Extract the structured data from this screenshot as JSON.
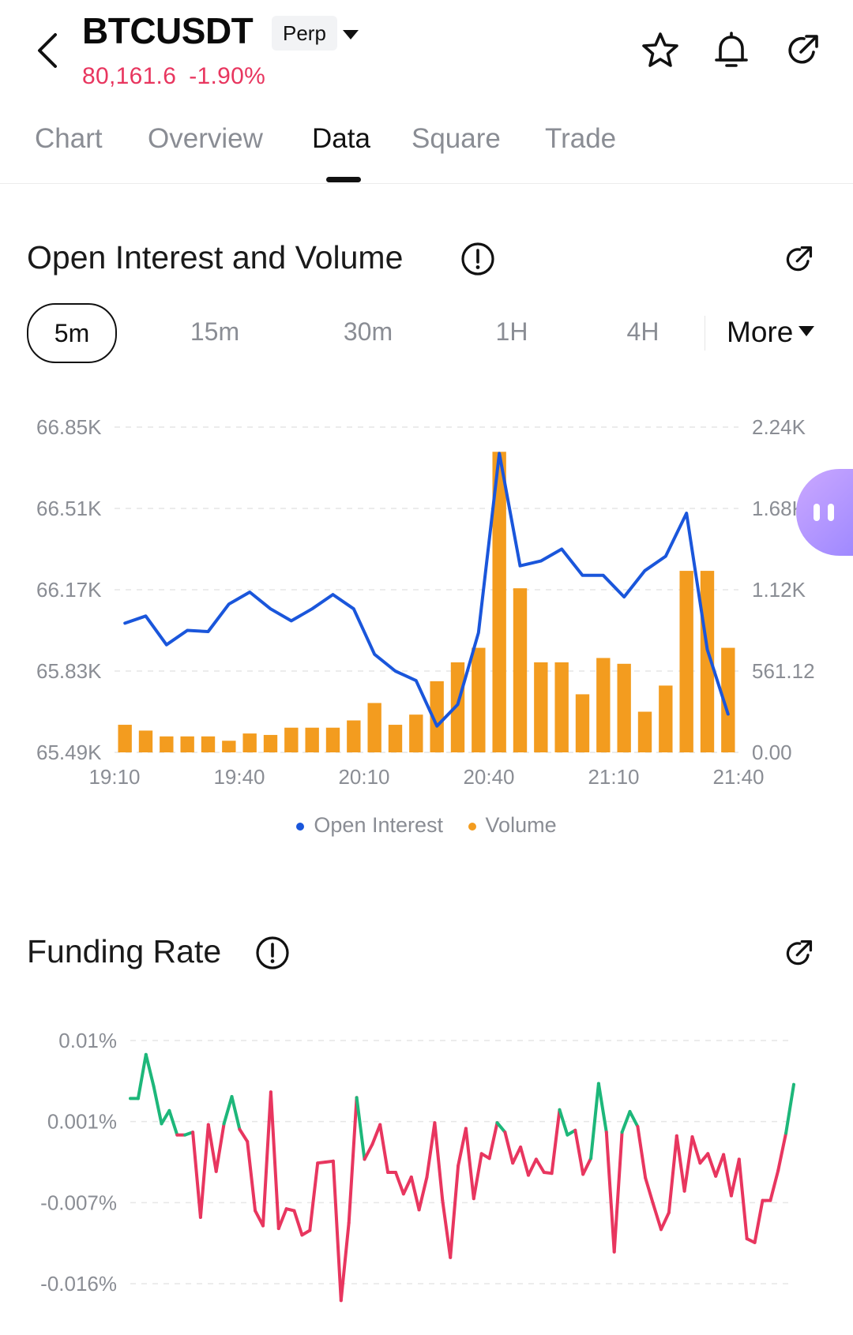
{
  "header": {
    "symbol": "BTCUSDT",
    "contract_type": "Perp",
    "last_price": "80,161.6",
    "change_percent": "-1.90%",
    "price_color": "#e8365f",
    "icons": [
      "back-arrow-icon",
      "caret-down-icon",
      "star-icon",
      "bell-icon",
      "share-icon"
    ]
  },
  "tabs": [
    {
      "label": "Chart",
      "active": false
    },
    {
      "label": "Overview",
      "active": false
    },
    {
      "label": "Data",
      "active": true
    },
    {
      "label": "Square",
      "active": false
    },
    {
      "label": "Trade",
      "active": false
    }
  ],
  "open_interest": {
    "title": "Open Interest and Volume",
    "intervals": [
      {
        "label": "5m",
        "active": true
      },
      {
        "label": "15m",
        "active": false
      },
      {
        "label": "30m",
        "active": false
      },
      {
        "label": "1H",
        "active": false
      },
      {
        "label": "4H",
        "active": false
      }
    ],
    "more_label": "More",
    "legend": [
      {
        "label": "Open Interest",
        "color": "#1a56db"
      },
      {
        "label": "Volume",
        "color": "#f39c1f"
      }
    ]
  },
  "funding_rate": {
    "title": "Funding Rate"
  },
  "chart_data": [
    {
      "type": "bar+line",
      "title": "Open Interest and Volume",
      "x_ticks": [
        "19:10",
        "19:40",
        "20:10",
        "20:40",
        "21:10",
        "21:40"
      ],
      "y_left_ticks": [
        "65.49K",
        "65.83K",
        "66.17K",
        "66.51K",
        "66.85K"
      ],
      "y_left_range": [
        65490,
        66850
      ],
      "y_right_ticks": [
        "0.00",
        "561.12",
        "1.12K",
        "1.68K",
        "2.24K"
      ],
      "y_right_range": [
        0,
        2240
      ],
      "grid": true,
      "legend_position": "bottom",
      "series": [
        {
          "name": "Open Interest",
          "kind": "line",
          "axis": "left",
          "color": "#1a56db",
          "values": [
            66030,
            66060,
            65940,
            66000,
            65995,
            66110,
            66160,
            66090,
            66040,
            66090,
            66150,
            66090,
            65900,
            65830,
            65790,
            65600,
            65690,
            65990,
            66740,
            66270,
            66290,
            66340,
            66230,
            66230,
            66140,
            66250,
            66310,
            66490,
            65920,
            65650
          ]
        },
        {
          "name": "Volume",
          "kind": "bar",
          "axis": "right",
          "color": "#f39c1f",
          "values": [
            190,
            150,
            110,
            110,
            110,
            80,
            130,
            120,
            170,
            170,
            170,
            220,
            340,
            190,
            260,
            490,
            620,
            720,
            2070,
            1130,
            620,
            620,
            400,
            650,
            610,
            280,
            460,
            1250,
            1250,
            720
          ]
        }
      ]
    },
    {
      "type": "line",
      "title": "Funding Rate",
      "y_ticks": [
        "0.01%",
        "0.001%",
        "-0.007%",
        "-0.016%"
      ],
      "y_range": [
        -0.016,
        0.01
      ],
      "positive_color": "#1db77a",
      "negative_color": "#e8365f",
      "grid": true,
      "values": [
        0.0038,
        0.0038,
        0.0085,
        0.0051,
        0.0011,
        0.0025,
        -0.0001,
        -0.0001,
        0.0002,
        -0.0089,
        0.001,
        -0.004,
        0.0011,
        0.004,
        0.0005,
        -0.0008,
        -0.0082,
        -0.0098,
        0.0045,
        -0.0101,
        -0.008,
        -0.0082,
        -0.0108,
        -0.0103,
        -0.0031,
        -0.003,
        -0.0029,
        -0.0178,
        -0.0095,
        0.0039,
        -0.0027,
        -0.0011,
        0.001,
        -0.0041,
        -0.0041,
        -0.0064,
        -0.0046,
        -0.0081,
        -0.0046,
        0.0012,
        -0.0071,
        -0.0132,
        -0.0034,
        0.0006,
        -0.0069,
        -0.0021,
        -0.0026,
        0.0012,
        0.0002,
        -0.0031,
        -0.0014,
        -0.0044,
        -0.0027,
        -0.0041,
        -0.0042,
        0.0026,
        -0.0001,
        0.0004,
        -0.0043,
        -0.0026,
        0.0054,
        0.0002,
        -0.0126,
        0.0002,
        0.0024,
        0.0008,
        -0.0047,
        -0.0075,
        -0.0102,
        -0.0084,
        -0.0002,
        -0.0061,
        -0.0003,
        -0.0031,
        -0.0021,
        -0.0045,
        -0.0022,
        -0.0066,
        -0.0027,
        -0.0112,
        -0.0116,
        -0.0071,
        -0.0071,
        -0.0039,
        0.0001,
        0.0053
      ]
    }
  ]
}
